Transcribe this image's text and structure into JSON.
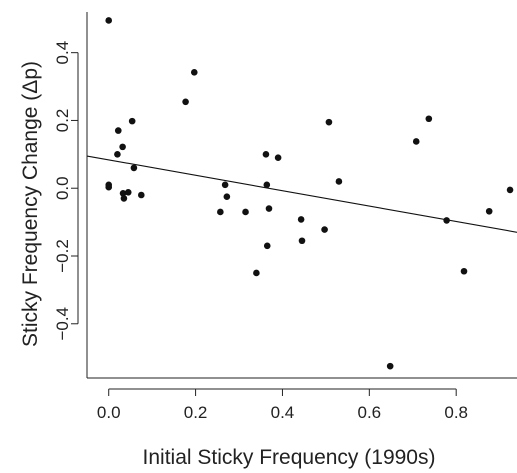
{
  "chart_data": {
    "type": "scatter",
    "title": "",
    "xlabel": "Initial Sticky Frequency (1990s)",
    "ylabel": "Sticky Frequency Change (Δp)",
    "xlim": [
      -0.05,
      0.94
    ],
    "ylim": [
      -0.56,
      0.52
    ],
    "xticks": [
      0.0,
      0.2,
      0.4,
      0.6,
      0.8
    ],
    "xtick_labels": [
      "0.0",
      "0.2",
      "0.4",
      "0.6",
      "0.8"
    ],
    "yticks": [
      -0.4,
      -0.2,
      0.0,
      0.2,
      0.4
    ],
    "ytick_labels": [
      "−0.4",
      "−0.2",
      "0.0",
      "0.2",
      "0.4"
    ],
    "grid": false,
    "box": "left-bottom-open",
    "point_color": "#111111",
    "line_color": "#111111",
    "points": [
      {
        "x": 0.0,
        "y": 0.495
      },
      {
        "x": 0.0,
        "y": 0.01
      },
      {
        "x": 0.0,
        "y": 0.003
      },
      {
        "x": 0.02,
        "y": 0.1
      },
      {
        "x": 0.022,
        "y": 0.17
      },
      {
        "x": 0.032,
        "y": 0.122
      },
      {
        "x": 0.033,
        "y": -0.015
      },
      {
        "x": 0.035,
        "y": -0.03
      },
      {
        "x": 0.045,
        "y": -0.012
      },
      {
        "x": 0.054,
        "y": 0.198
      },
      {
        "x": 0.058,
        "y": 0.06
      },
      {
        "x": 0.075,
        "y": -0.02
      },
      {
        "x": 0.177,
        "y": 0.255
      },
      {
        "x": 0.197,
        "y": 0.342
      },
      {
        "x": 0.257,
        "y": -0.07
      },
      {
        "x": 0.268,
        "y": 0.01
      },
      {
        "x": 0.272,
        "y": -0.025
      },
      {
        "x": 0.315,
        "y": -0.07
      },
      {
        "x": 0.34,
        "y": -0.25
      },
      {
        "x": 0.362,
        "y": 0.1
      },
      {
        "x": 0.364,
        "y": 0.01
      },
      {
        "x": 0.365,
        "y": -0.17
      },
      {
        "x": 0.369,
        "y": -0.06
      },
      {
        "x": 0.39,
        "y": 0.09
      },
      {
        "x": 0.443,
        "y": -0.092
      },
      {
        "x": 0.445,
        "y": -0.155
      },
      {
        "x": 0.497,
        "y": -0.122
      },
      {
        "x": 0.507,
        "y": 0.195
      },
      {
        "x": 0.53,
        "y": 0.02
      },
      {
        "x": 0.648,
        "y": -0.525
      },
      {
        "x": 0.708,
        "y": 0.138
      },
      {
        "x": 0.737,
        "y": 0.205
      },
      {
        "x": 0.778,
        "y": -0.095
      },
      {
        "x": 0.818,
        "y": -0.245
      },
      {
        "x": 0.876,
        "y": -0.068
      },
      {
        "x": 0.924,
        "y": -0.005
      }
    ],
    "trend_line": {
      "x": [
        -0.05,
        0.94
      ],
      "y": [
        0.095,
        -0.13
      ]
    }
  }
}
